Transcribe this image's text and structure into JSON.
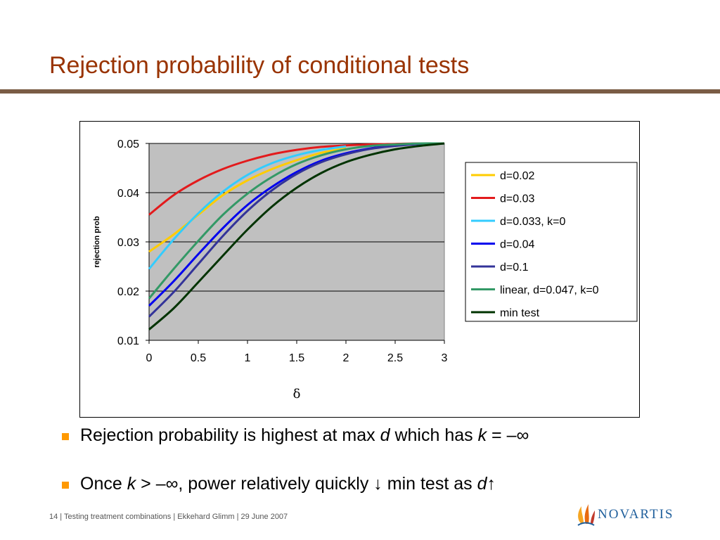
{
  "slide": {
    "title": "Rejection probability of conditional tests"
  },
  "bullets": [
    {
      "pre": "Rejection probability is highest at max ",
      "it1": "d",
      "mid": " which has ",
      "it2": "k",
      "post": " = –∞"
    },
    {
      "pre": "Once ",
      "it1": "k",
      "mid": " > –∞, power relatively quickly ↓ min test as ",
      "it2": "d",
      "post": "↑"
    }
  ],
  "footer": {
    "page": "14",
    "text": " | Testing treatment combinations | Ekkehard Glimm | 29 June 2007"
  },
  "logo": {
    "text": "NOVARTIS",
    "color": "#1f5f9c"
  },
  "colors": {
    "accent_title": "#993300",
    "rule": "#7a5c45",
    "bullet": "#ff9900",
    "plot_bg": "#c0c0c0"
  },
  "chart_data": {
    "type": "line",
    "xlabel": "δ",
    "ylabel": "rejection prob",
    "xlim": [
      0,
      3
    ],
    "ylim": [
      0.01,
      0.05
    ],
    "xticks": [
      "0",
      "0.5",
      "1",
      "1.5",
      "2",
      "2.5",
      "3"
    ],
    "yticks": [
      "0.05",
      "0.04",
      "0.03",
      "0.02",
      "0.01"
    ],
    "grid": "horizontal",
    "legend_position": "right",
    "x": [
      0,
      0.25,
      0.5,
      0.75,
      1,
      1.25,
      1.5,
      1.75,
      2,
      2.25,
      2.5,
      2.75,
      3
    ],
    "series": [
      {
        "name": "d=0.02",
        "color": "#ffcc00",
        "x": [
          0,
          0.25,
          0.5,
          0.75,
          1,
          1.25,
          1.5,
          1.75,
          2
        ],
        "values": [
          0.028,
          0.0315,
          0.0355,
          0.0395,
          0.0425,
          0.0448,
          0.0466,
          0.0481,
          0.049
        ]
      },
      {
        "name": "d=0.03",
        "color": "#e31a1c",
        "x": [
          0,
          0.25,
          0.5,
          0.75,
          1,
          1.25,
          1.5,
          1.75,
          2,
          2.25,
          2.5,
          2.75,
          3
        ],
        "values": [
          0.0355,
          0.0395,
          0.0425,
          0.0448,
          0.0465,
          0.0478,
          0.0487,
          0.0493,
          0.0496,
          0.0498,
          0.0499,
          0.05,
          0.05
        ]
      },
      {
        "name": "d=0.033, k=0",
        "color": "#33ccff",
        "x": [
          0,
          0.25,
          0.5,
          0.75,
          1,
          1.25,
          1.5,
          1.75,
          2
        ],
        "values": [
          0.0245,
          0.0305,
          0.0358,
          0.0402,
          0.0436,
          0.046,
          0.0476,
          0.0487,
          0.0494
        ]
      },
      {
        "name": "d=0.04",
        "color": "#0000ee",
        "x": [
          0,
          0.25,
          0.5,
          0.75,
          1,
          1.25,
          1.5,
          1.75,
          2,
          2.25,
          2.5,
          2.75,
          3
        ],
        "values": [
          0.017,
          0.022,
          0.0275,
          0.0328,
          0.0375,
          0.0412,
          0.0442,
          0.0465,
          0.048,
          0.049,
          0.0496,
          0.0499,
          0.05
        ]
      },
      {
        "name": "d=0.1",
        "color": "#333399",
        "x": [
          0,
          0.25,
          0.5,
          0.75,
          1,
          1.25,
          1.5,
          1.75,
          2,
          2.25,
          2.5,
          2.75,
          3
        ],
        "values": [
          0.0148,
          0.0198,
          0.0255,
          0.0312,
          0.0363,
          0.0405,
          0.0438,
          0.0462,
          0.0478,
          0.0489,
          0.0495,
          0.0499,
          0.05
        ]
      },
      {
        "name": "linear, d=0.047, k=0",
        "color": "#339966",
        "x": [
          0,
          0.25,
          0.5,
          0.75,
          1,
          1.25,
          1.5,
          1.75,
          2,
          2.25,
          2.5,
          2.75,
          3
        ],
        "values": [
          0.0185,
          0.0245,
          0.0302,
          0.0355,
          0.0398,
          0.0432,
          0.0458,
          0.0476,
          0.0488,
          0.0495,
          0.0498,
          0.05,
          0.05
        ]
      },
      {
        "name": "min test",
        "color": "#003300",
        "x": [
          0,
          0.25,
          0.5,
          0.75,
          1,
          1.25,
          1.5,
          1.75,
          2,
          2.25,
          2.5,
          2.75,
          3
        ],
        "values": [
          0.0122,
          0.0165,
          0.0218,
          0.0272,
          0.0325,
          0.0372,
          0.041,
          0.044,
          0.0462,
          0.0477,
          0.0488,
          0.0495,
          0.05
        ]
      }
    ]
  }
}
